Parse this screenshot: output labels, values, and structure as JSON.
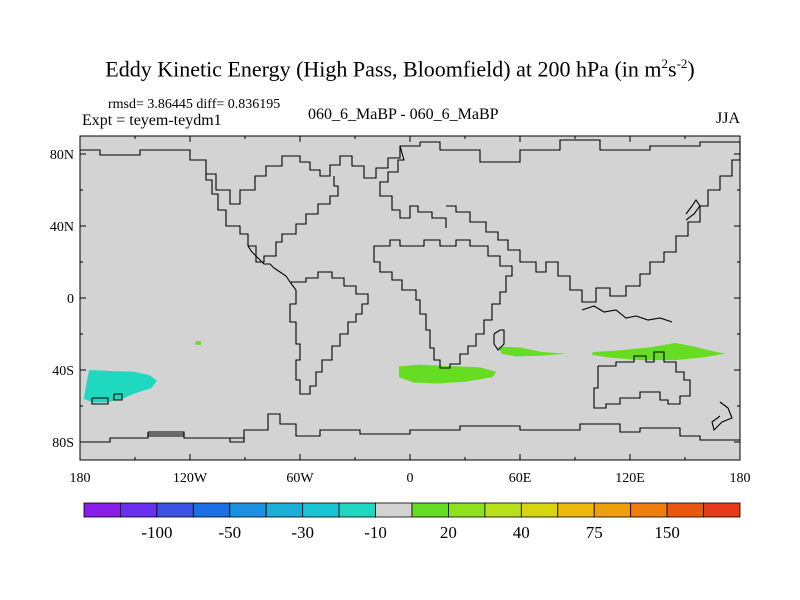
{
  "title": {
    "main": "Eddy Kinetic Energy (High Pass, Bloomfield) at 200 hPa (in m",
    "sup1": "2",
    "mid": "s",
    "sup2": "-2",
    "end": ")"
  },
  "stats_text": "rmsd= 3.86445 diff= 0.836195",
  "expt_text": "Expt = teyem-teydm1",
  "case_text": "060_6_MaBP - 060_6_MaBP",
  "season_text": "JJA",
  "chart_data": {
    "type": "heatmap",
    "projection": "cylindrical-equidistant",
    "xlim": [
      -180,
      180
    ],
    "ylim": [
      -90,
      90
    ],
    "x_ticks": [
      {
        "value": -180,
        "label": "180"
      },
      {
        "value": -120,
        "label": "120W"
      },
      {
        "value": -60,
        "label": "60W"
      },
      {
        "value": 0,
        "label": "0"
      },
      {
        "value": 60,
        "label": "60E"
      },
      {
        "value": 120,
        "label": "120E"
      },
      {
        "value": 180,
        "label": "180"
      }
    ],
    "y_ticks": [
      {
        "value": 80,
        "label": "80N"
      },
      {
        "value": 40,
        "label": "40N"
      },
      {
        "value": 0,
        "label": "0"
      },
      {
        "value": -40,
        "label": "40S"
      },
      {
        "value": -80,
        "label": "80S"
      }
    ],
    "background_color": "#d3d3d3",
    "coastline_color": "#000000",
    "regions": [
      {
        "name": "south-pacific-negative",
        "value_class": "-10 to -30",
        "color": "#1fd8c0",
        "outline": [
          [
            -175,
            -40
          ],
          [
            -165,
            -40.5
          ],
          [
            -150,
            -41
          ],
          [
            -142,
            -43
          ],
          [
            -138,
            -46
          ],
          [
            -141,
            -50
          ],
          [
            -150,
            -53
          ],
          [
            -157,
            -56
          ],
          [
            -165,
            -58
          ],
          [
            -173,
            -58
          ],
          [
            -178,
            -56
          ],
          [
            -177,
            -51
          ],
          [
            -176,
            -45
          ]
        ]
      },
      {
        "name": "south-atlantic-positive",
        "value_class": "10 to 20",
        "color": "#66dd22",
        "outline": [
          [
            -6,
            -38
          ],
          [
            5,
            -37
          ],
          [
            25,
            -38
          ],
          [
            38,
            -38.5
          ],
          [
            47,
            -41
          ],
          [
            45,
            -44
          ],
          [
            30,
            -46.5
          ],
          [
            15,
            -47.5
          ],
          [
            2,
            -47
          ],
          [
            -6,
            -44
          ]
        ]
      },
      {
        "name": "indian-ocean-positive",
        "value_class": "10 to 20",
        "color": "#66dd22",
        "outline": [
          [
            48,
            -27
          ],
          [
            60,
            -27.5
          ],
          [
            72,
            -30
          ],
          [
            85,
            -31
          ],
          [
            72,
            -32
          ],
          [
            58,
            -32.5
          ],
          [
            50,
            -31
          ]
        ]
      },
      {
        "name": "australia-positive",
        "value_class": "10 to 20",
        "color": "#66dd22",
        "outline": [
          [
            100,
            -30
          ],
          [
            115,
            -29
          ],
          [
            130,
            -27.5
          ],
          [
            145,
            -25
          ],
          [
            155,
            -27
          ],
          [
            165,
            -29.5
          ],
          [
            172,
            -31
          ],
          [
            160,
            -33
          ],
          [
            145,
            -34.5
          ],
          [
            125,
            -34.5
          ],
          [
            108,
            -33
          ],
          [
            99,
            -31.5
          ]
        ]
      },
      {
        "name": "small-green-blob",
        "value_class": "10 to 20",
        "color": "#66dd22",
        "outline": [
          [
            -117,
            -24
          ],
          [
            -114,
            -24
          ],
          [
            -114,
            -26
          ],
          [
            -117,
            -26
          ]
        ]
      }
    ],
    "colorbar": {
      "colors": [
        "#8a1ee8",
        "#6a2ff0",
        "#3b52e5",
        "#1b70ea",
        "#1a90e0",
        "#19afd6",
        "#16c6d2",
        "#1fd8c0",
        "#d3d3d3",
        "#66dd22",
        "#8fe11c",
        "#b8e018",
        "#d6d60f",
        "#ecba0d",
        "#eea00b",
        "#ef7e0c",
        "#ec5710",
        "#e83a1a"
      ],
      "labels": [
        "-100",
        "-50",
        "-30",
        "-10",
        "20",
        "40",
        "75",
        "150"
      ]
    }
  }
}
